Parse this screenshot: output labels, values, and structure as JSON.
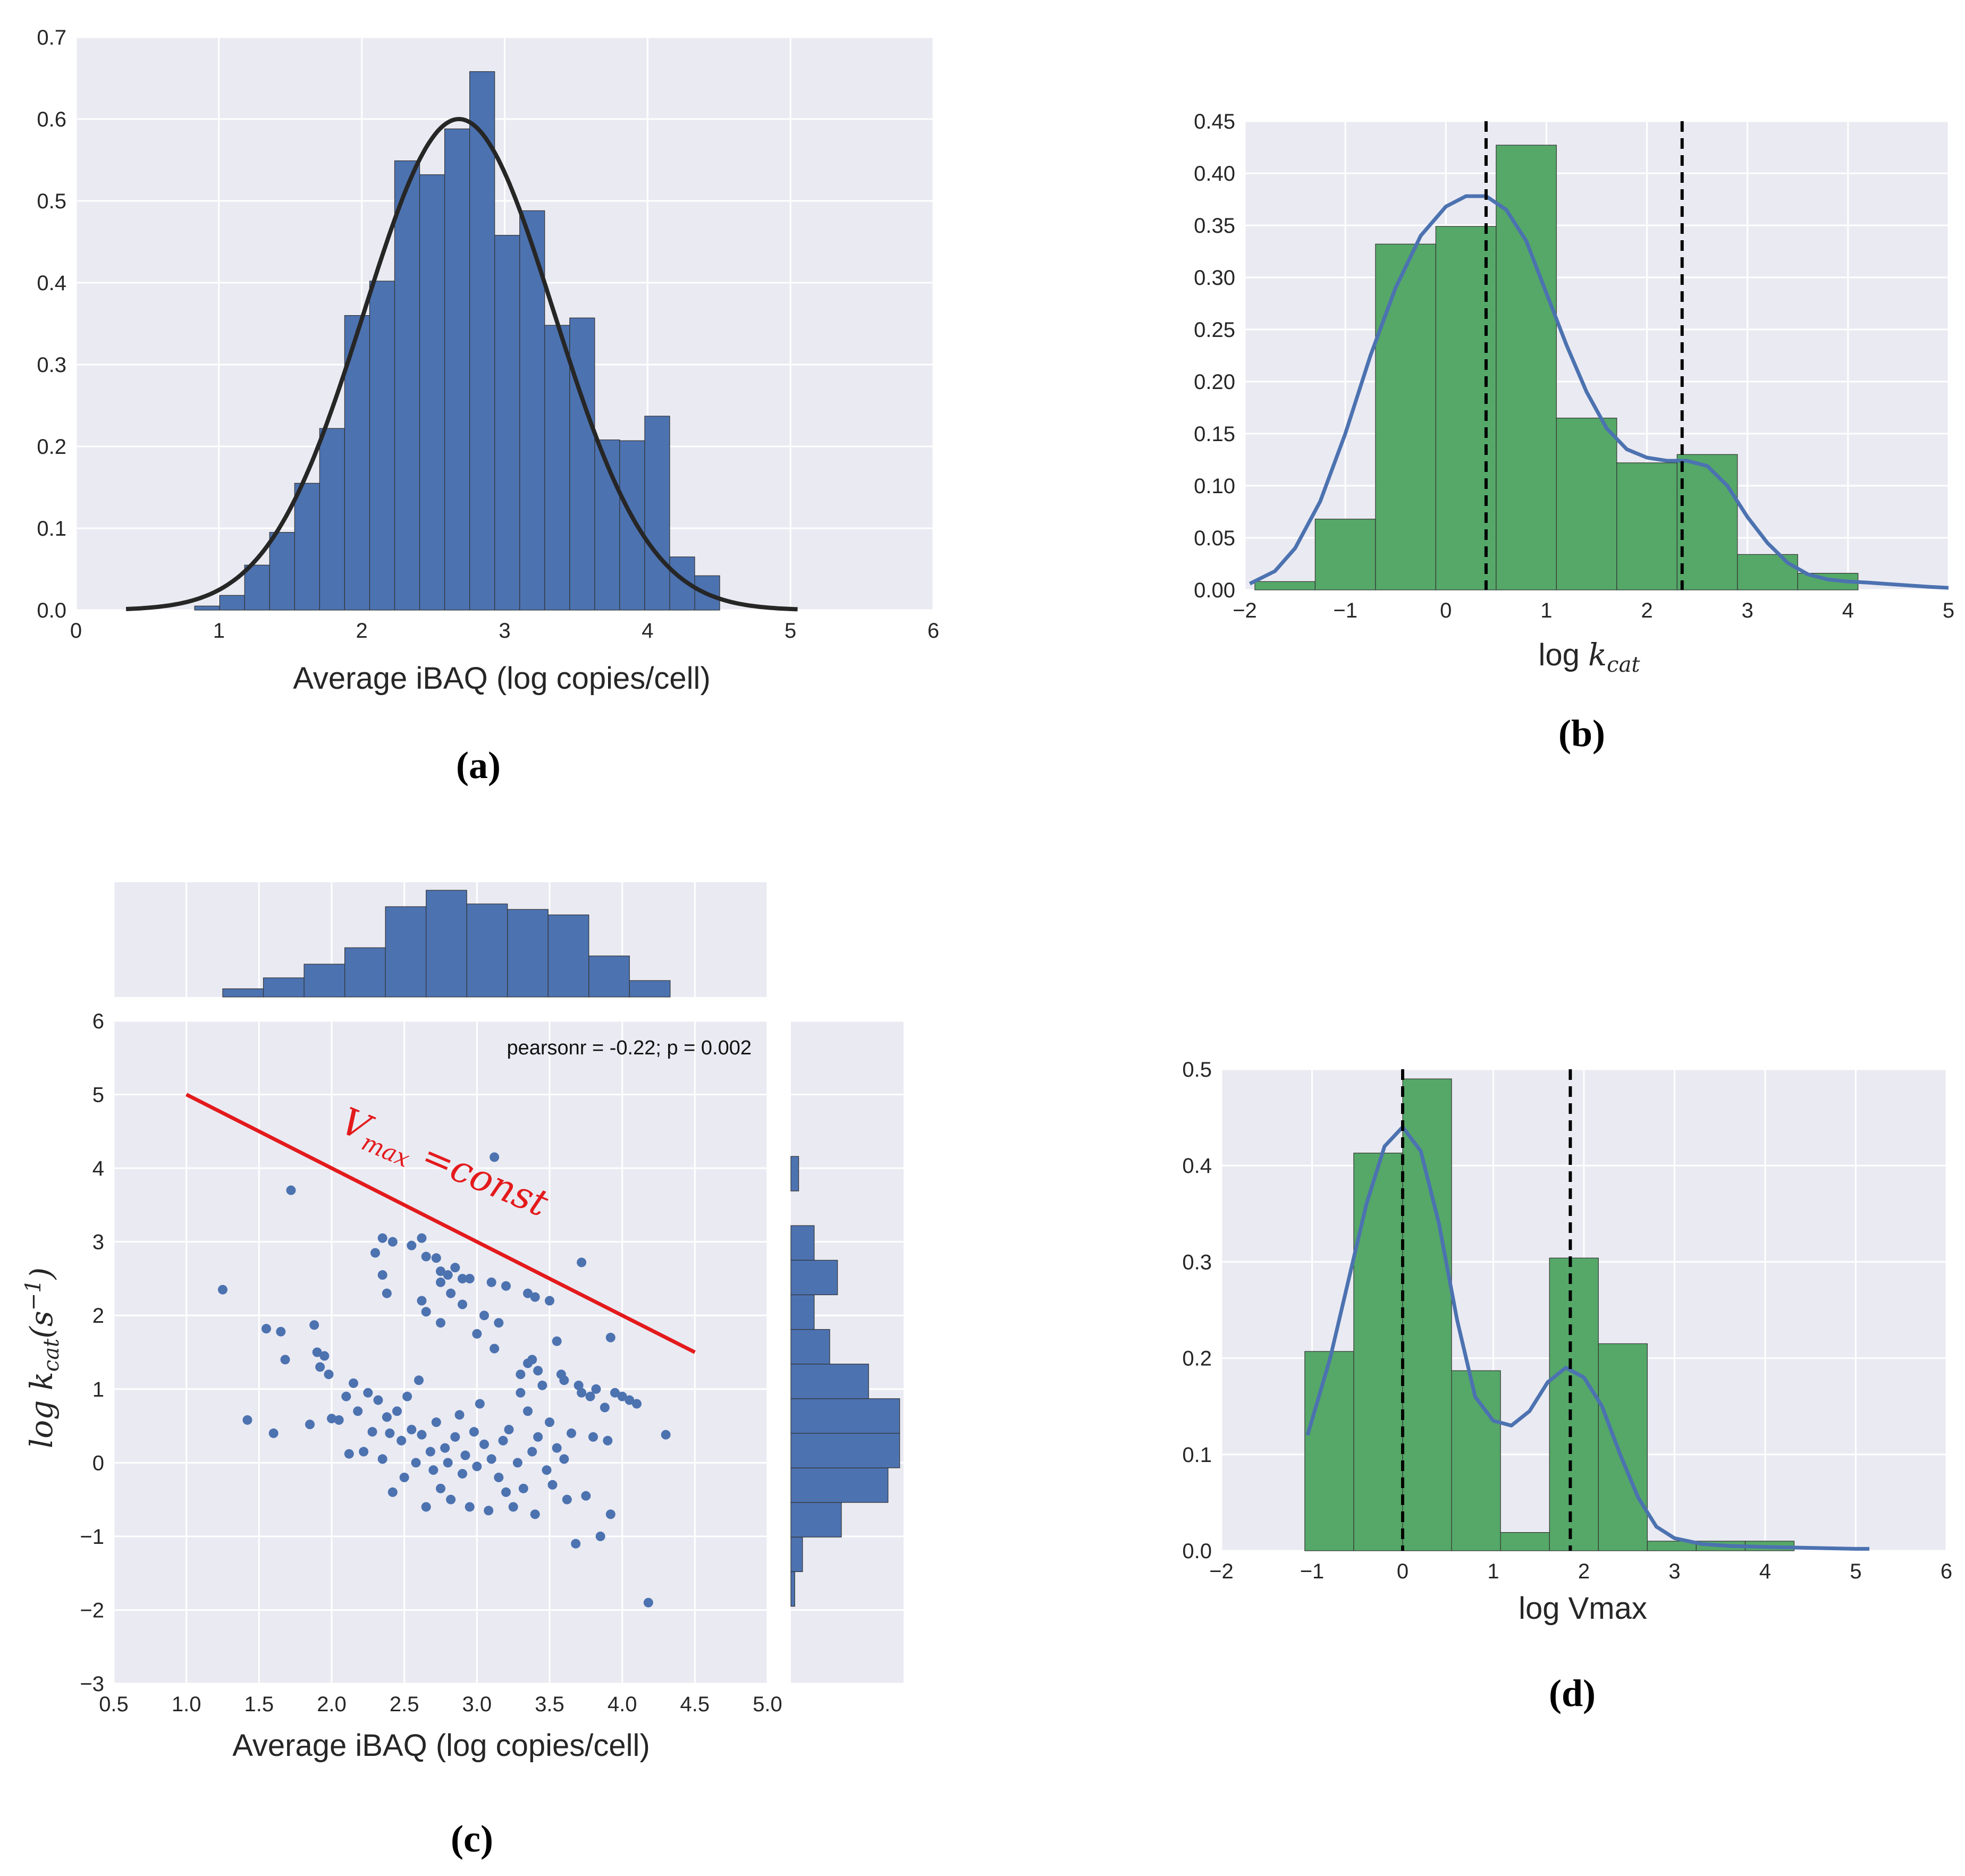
{
  "colors": {
    "blue": "#4c72b0",
    "green": "#55a868",
    "black": "#262626",
    "red": "#e31a1c",
    "panel": "#eaeaf2",
    "grid": "#ffffff"
  },
  "captions": {
    "a": "(a)",
    "b": "(b)",
    "c": "(c)",
    "d": "(d)"
  },
  "chart_data": [
    {
      "id": "a",
      "type": "bar",
      "xlabel": "Average iBAQ (log copies/cell)",
      "ylabel": "",
      "xlim": [
        0,
        6
      ],
      "ylim": [
        0,
        0.7
      ],
      "xticks": [
        0,
        1,
        2,
        3,
        4,
        5,
        6
      ],
      "xtick_labels": [
        "0",
        "1",
        "2",
        "3",
        "4",
        "5",
        "6"
      ],
      "yticks": [
        0,
        0.1,
        0.2,
        0.3,
        0.4,
        0.5,
        0.6,
        0.7
      ],
      "ytick_labels": [
        "0.0",
        "0.1",
        "0.2",
        "0.3",
        "0.4",
        "0.5",
        "0.6",
        "0.7"
      ],
      "bin_edges": [
        0.83,
        1.005,
        1.18,
        1.355,
        1.53,
        1.705,
        1.88,
        2.055,
        2.23,
        2.405,
        2.58,
        2.755,
        2.93,
        3.105,
        3.28,
        3.455,
        3.63,
        3.805,
        3.98,
        4.155,
        4.33,
        4.505
      ],
      "values": [
        0.005,
        0.018,
        0.055,
        0.095,
        0.155,
        0.222,
        0.36,
        0.402,
        0.549,
        0.532,
        0.588,
        0.658,
        0.458,
        0.488,
        0.348,
        0.357,
        0.208,
        0.207,
        0.237,
        0.065,
        0.042
      ],
      "curve": {
        "type": "normal",
        "mean": 2.68,
        "peak": 0.6,
        "x_range": [
          0.35,
          5.05
        ]
      }
    },
    {
      "id": "b",
      "type": "bar",
      "xlabel": "log kcat",
      "xlabel_prefix": "log ",
      "xlabel_var": "k",
      "xlabel_sub": "cat",
      "xlim": [
        -2,
        5
      ],
      "ylim": [
        0,
        0.45
      ],
      "xticks": [
        -2,
        -1,
        0,
        1,
        2,
        3,
        4,
        5
      ],
      "xtick_labels": [
        "−2",
        "−1",
        "0",
        "1",
        "2",
        "3",
        "4",
        "5"
      ],
      "yticks": [
        0,
        0.05,
        0.1,
        0.15,
        0.2,
        0.25,
        0.3,
        0.35,
        0.4,
        0.45
      ],
      "ytick_labels": [
        "0.00",
        "0.05",
        "0.10",
        "0.15",
        "0.20",
        "0.25",
        "0.30",
        "0.35",
        "0.40",
        "0.45"
      ],
      "bin_edges": [
        -1.9,
        -1.3,
        -0.7,
        -0.1,
        0.5,
        1.1,
        1.7,
        2.3,
        2.9,
        3.5,
        4.1
      ],
      "values": [
        0.008,
        0.068,
        0.332,
        0.349,
        0.427,
        0.165,
        0.122,
        0.13,
        0.034,
        0.016
      ],
      "kde": {
        "x": [
          -1.95,
          -1.7,
          -1.5,
          -1.25,
          -1.0,
          -0.75,
          -0.5,
          -0.25,
          0.0,
          0.2,
          0.4,
          0.6,
          0.8,
          1.0,
          1.2,
          1.4,
          1.6,
          1.8,
          2.0,
          2.2,
          2.4,
          2.6,
          2.8,
          3.0,
          3.2,
          3.4,
          3.6,
          3.8,
          4.0,
          4.2,
          4.5,
          4.8,
          5.0
        ],
        "y": [
          0.006,
          0.018,
          0.04,
          0.085,
          0.15,
          0.225,
          0.29,
          0.34,
          0.368,
          0.378,
          0.378,
          0.365,
          0.335,
          0.285,
          0.235,
          0.19,
          0.155,
          0.135,
          0.127,
          0.124,
          0.124,
          0.119,
          0.1,
          0.07,
          0.045,
          0.026,
          0.015,
          0.01,
          0.008,
          0.007,
          0.005,
          0.003,
          0.002
        ]
      },
      "vlines": [
        0.4,
        2.35
      ]
    },
    {
      "id": "c",
      "type": "scatter",
      "xlabel": "Average iBAQ (log copies/cell)",
      "ylabel": "log kcat(s−1)",
      "ylabel_prefix": "log ",
      "ylabel_var": "k",
      "ylabel_sub": "cat",
      "ylabel_paren": "(s",
      "ylabel_sup": "−1",
      "ylabel_close": ")",
      "xlim": [
        0.5,
        5.0
      ],
      "ylim": [
        -3,
        6
      ],
      "xticks": [
        0.5,
        1.0,
        1.5,
        2.0,
        2.5,
        3.0,
        3.5,
        4.0,
        4.5,
        5.0
      ],
      "xtick_labels": [
        "0.5",
        "1.0",
        "1.5",
        "2.0",
        "2.5",
        "3.0",
        "3.5",
        "4.0",
        "4.5",
        "5.0"
      ],
      "yticks": [
        -3,
        -2,
        -1,
        0,
        1,
        2,
        3,
        4,
        5,
        6
      ],
      "ytick_labels": [
        "−3",
        "−2",
        "−1",
        "0",
        "1",
        "2",
        "3",
        "4",
        "5",
        "6"
      ],
      "annotation": "pearsonr = -0.22; p = 0.002",
      "line": {
        "x": [
          1.0,
          4.5
        ],
        "y": [
          5.0,
          1.5
        ],
        "label_main": "V",
        "label_sub": "max",
        "label_rest": " =const"
      },
      "points": [
        [
          1.25,
          2.35
        ],
        [
          1.42,
          0.58
        ],
        [
          1.55,
          1.82
        ],
        [
          1.6,
          0.4
        ],
        [
          1.65,
          1.78
        ],
        [
          1.68,
          1.4
        ],
        [
          1.72,
          3.7
        ],
        [
          1.85,
          0.52
        ],
        [
          1.88,
          1.87
        ],
        [
          1.9,
          1.5
        ],
        [
          1.92,
          1.3
        ],
        [
          1.95,
          1.45
        ],
        [
          1.98,
          1.2
        ],
        [
          2.0,
          0.6
        ],
        [
          2.05,
          0.58
        ],
        [
          2.1,
          0.9
        ],
        [
          2.12,
          0.12
        ],
        [
          2.15,
          1.08
        ],
        [
          2.18,
          0.7
        ],
        [
          2.22,
          0.15
        ],
        [
          2.25,
          0.95
        ],
        [
          2.28,
          0.42
        ],
        [
          2.32,
          0.85
        ],
        [
          2.35,
          0.05
        ],
        [
          2.38,
          0.62
        ],
        [
          2.4,
          0.4
        ],
        [
          2.42,
          -0.4
        ],
        [
          2.45,
          0.7
        ],
        [
          2.48,
          0.3
        ],
        [
          2.5,
          -0.2
        ],
        [
          2.52,
          0.9
        ],
        [
          2.55,
          0.45
        ],
        [
          2.58,
          0.0
        ],
        [
          2.6,
          1.12
        ],
        [
          2.62,
          0.38
        ],
        [
          2.65,
          -0.6
        ],
        [
          2.68,
          0.15
        ],
        [
          2.7,
          -0.1
        ],
        [
          2.72,
          0.55
        ],
        [
          2.75,
          -0.35
        ],
        [
          2.78,
          0.2
        ],
        [
          2.8,
          0.0
        ],
        [
          2.82,
          -0.5
        ],
        [
          2.85,
          0.35
        ],
        [
          2.88,
          0.65
        ],
        [
          2.9,
          -0.15
        ],
        [
          2.92,
          0.1
        ],
        [
          2.95,
          -0.6
        ],
        [
          2.98,
          0.42
        ],
        [
          3.0,
          -0.05
        ],
        [
          3.02,
          0.8
        ],
        [
          3.05,
          0.25
        ],
        [
          3.08,
          -0.65
        ],
        [
          3.1,
          0.05
        ],
        [
          3.12,
          1.55
        ],
        [
          3.15,
          -0.2
        ],
        [
          3.18,
          0.3
        ],
        [
          3.2,
          -0.4
        ],
        [
          3.22,
          0.45
        ],
        [
          3.25,
          -0.6
        ],
        [
          3.28,
          0.0
        ],
        [
          3.3,
          0.95
        ],
        [
          3.32,
          -0.35
        ],
        [
          3.35,
          0.7
        ],
        [
          3.38,
          0.15
        ],
        [
          3.4,
          -0.7
        ],
        [
          3.42,
          0.35
        ],
        [
          3.45,
          1.05
        ],
        [
          3.48,
          -0.1
        ],
        [
          3.5,
          0.55
        ],
        [
          3.52,
          -0.3
        ],
        [
          3.55,
          0.2
        ],
        [
          3.58,
          1.2
        ],
        [
          3.6,
          0.05
        ],
        [
          3.62,
          -0.5
        ],
        [
          3.65,
          0.4
        ],
        [
          3.68,
          -1.1
        ],
        [
          3.7,
          1.05
        ],
        [
          3.72,
          0.95
        ],
        [
          3.75,
          -0.45
        ],
        [
          3.78,
          0.9
        ],
        [
          3.8,
          0.35
        ],
        [
          3.82,
          1.0
        ],
        [
          3.85,
          -1.0
        ],
        [
          3.88,
          0.75
        ],
        [
          3.9,
          0.3
        ],
        [
          3.92,
          -0.7
        ],
        [
          3.95,
          0.95
        ],
        [
          4.0,
          0.9
        ],
        [
          4.05,
          0.85
        ],
        [
          4.1,
          0.8
        ],
        [
          4.18,
          -1.9
        ],
        [
          4.3,
          0.38
        ],
        [
          2.35,
          3.05
        ],
        [
          2.42,
          3.0
        ],
        [
          2.55,
          2.95
        ],
        [
          2.62,
          3.05
        ],
        [
          2.65,
          2.8
        ],
        [
          2.72,
          2.78
        ],
        [
          2.75,
          2.6
        ],
        [
          2.8,
          2.55
        ],
        [
          2.85,
          2.65
        ],
        [
          2.9,
          2.5
        ],
        [
          2.95,
          2.5
        ],
        [
          3.1,
          2.45
        ],
        [
          3.2,
          2.4
        ],
        [
          3.35,
          2.3
        ],
        [
          3.4,
          2.25
        ],
        [
          3.5,
          2.2
        ],
        [
          3.72,
          2.72
        ],
        [
          2.3,
          2.85
        ],
        [
          2.35,
          2.55
        ],
        [
          2.38,
          2.3
        ],
        [
          2.62,
          2.2
        ],
        [
          2.65,
          2.05
        ],
        [
          2.75,
          1.9
        ],
        [
          2.75,
          2.45
        ],
        [
          2.82,
          2.3
        ],
        [
          2.9,
          2.15
        ],
        [
          3.05,
          2.0
        ],
        [
          3.15,
          1.9
        ],
        [
          3.0,
          1.75
        ],
        [
          3.12,
          4.15
        ],
        [
          3.35,
          1.35
        ],
        [
          3.38,
          1.4
        ],
        [
          3.55,
          1.65
        ],
        [
          3.92,
          1.7
        ],
        [
          3.3,
          1.2
        ],
        [
          3.42,
          1.25
        ],
        [
          3.6,
          1.12
        ]
      ]
    },
    {
      "id": "c_top",
      "type": "bar",
      "orientation": "vertical",
      "label": "marginal histogram of Average iBAQ",
      "bin_edges": [
        1.25,
        1.53,
        1.81,
        2.09,
        2.37,
        2.65,
        2.93,
        3.21,
        3.49,
        3.77,
        4.05,
        4.33
      ],
      "values": [
        3,
        7,
        12,
        18,
        33,
        39,
        34,
        32,
        30,
        15,
        6
      ]
    },
    {
      "id": "c_right",
      "type": "bar",
      "orientation": "horizontal",
      "label": "marginal histogram of log kcat",
      "bin_edges": [
        -1.95,
        -1.48,
        -1.01,
        -0.54,
        -0.07,
        0.4,
        0.87,
        1.34,
        1.81,
        2.28,
        2.75,
        3.22,
        3.69,
        4.16
      ],
      "values": [
        1,
        3,
        13,
        25,
        28,
        28,
        20,
        10,
        6,
        12,
        6,
        0,
        2
      ]
    },
    {
      "id": "d",
      "type": "bar",
      "xlabel": "log Vmax",
      "xlim": [
        -2,
        6
      ],
      "ylim": [
        0,
        0.5
      ],
      "xticks": [
        -2,
        -1,
        0,
        1,
        2,
        3,
        4,
        5,
        6
      ],
      "xtick_labels": [
        "−2",
        "−1",
        "0",
        "1",
        "2",
        "3",
        "4",
        "5",
        "6"
      ],
      "yticks": [
        0,
        0.1,
        0.2,
        0.3,
        0.4,
        0.5
      ],
      "ytick_labels": [
        "0.0",
        "0.1",
        "0.2",
        "0.3",
        "0.4",
        "0.5"
      ],
      "bin_edges": [
        -1.08,
        -0.54,
        0.0,
        0.54,
        1.08,
        1.62,
        2.16,
        2.7,
        3.24,
        3.78,
        4.32
      ],
      "values": [
        0.207,
        0.413,
        0.49,
        0.187,
        0.019,
        0.304,
        0.215,
        0.01,
        0.01,
        0.01
      ],
      "kde": {
        "x": [
          -1.05,
          -0.8,
          -0.6,
          -0.4,
          -0.2,
          0.0,
          0.2,
          0.4,
          0.6,
          0.8,
          1.0,
          1.2,
          1.4,
          1.6,
          1.8,
          2.0,
          2.2,
          2.4,
          2.6,
          2.8,
          3.0,
          3.3,
          3.6,
          4.0,
          4.5,
          5.0,
          5.15
        ],
        "y": [
          0.12,
          0.2,
          0.28,
          0.36,
          0.42,
          0.44,
          0.415,
          0.34,
          0.24,
          0.16,
          0.135,
          0.13,
          0.145,
          0.175,
          0.19,
          0.18,
          0.15,
          0.1,
          0.055,
          0.025,
          0.013,
          0.007,
          0.005,
          0.004,
          0.003,
          0.002,
          0.002
        ]
      },
      "vlines": [
        0.0,
        1.85
      ]
    }
  ]
}
